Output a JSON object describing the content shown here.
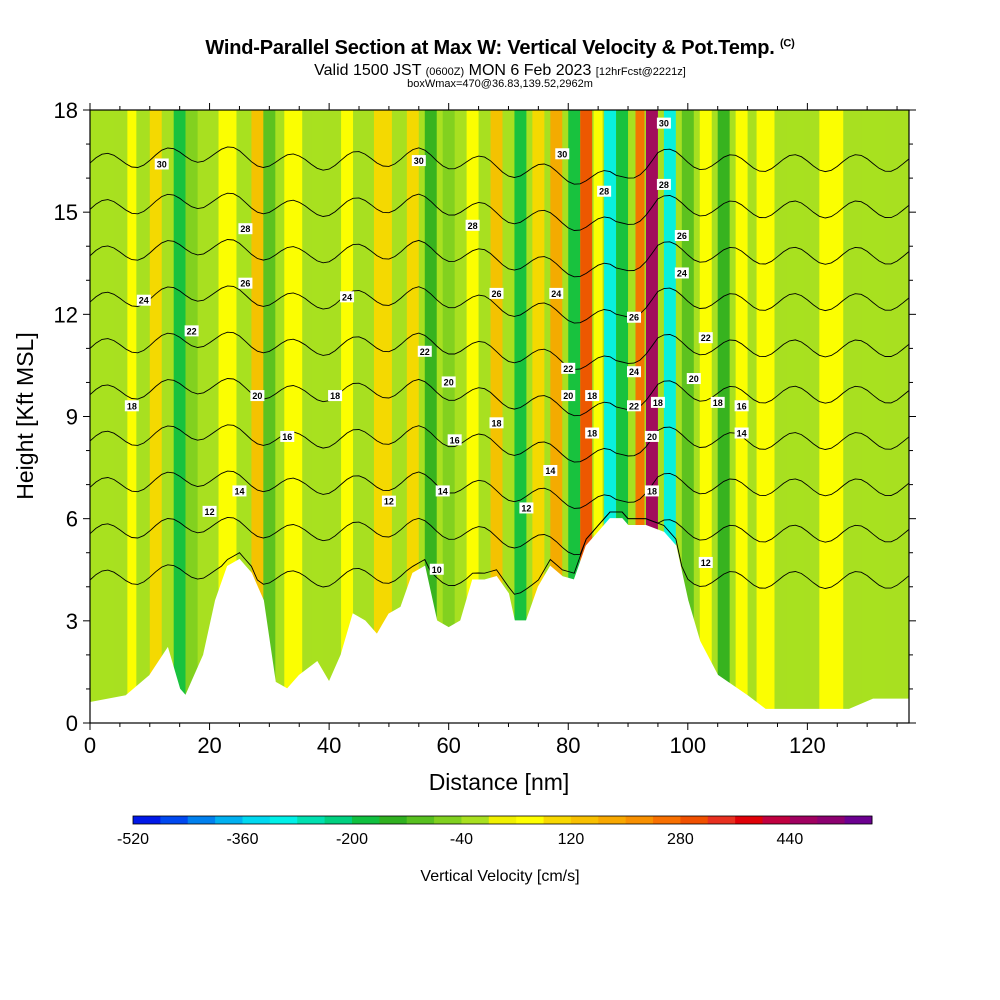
{
  "header": {
    "title": "Wind-Parallel Section at Max W: Vertical Velocity & Pot.Temp.",
    "title_mark": "(C)",
    "valid_prefix": "Valid 1500 JST ",
    "valid_utc": "(0600Z)",
    "valid_date": " MON 6 Feb 2023 ",
    "forecast_info": "[12hrFcst@2221z]",
    "box_info": "boxWmax=470@36.83,139.52,2962m"
  },
  "chart_data": {
    "type": "heatmap",
    "title": "Wind-Parallel Section at Max W: Vertical Velocity & Pot.Temp.",
    "xlabel": "Distance [nm]",
    "ylabel": "Height [Kft MSL]",
    "xlim": [
      0,
      137
    ],
    "ylim": [
      0,
      18
    ],
    "x_ticks": [
      0,
      20,
      40,
      60,
      80,
      100,
      120
    ],
    "y_ticks": [
      0,
      3,
      6,
      9,
      12,
      15,
      18
    ],
    "colorbar": {
      "label": "Vertical Velocity [cm/s]",
      "tick_values": [
        -520,
        -360,
        -200,
        -40,
        120,
        280,
        440
      ],
      "tick_labels": [
        "-520",
        "-360",
        "-200",
        "-40",
        "120",
        "280",
        "440"
      ],
      "min": -520,
      "step": 40,
      "colors": [
        "#0018e8",
        "#0048f0",
        "#0080ee",
        "#00b0f0",
        "#00d8f0",
        "#00f0e8",
        "#00e0b0",
        "#00d080",
        "#10c040",
        "#30b020",
        "#58c020",
        "#80d020",
        "#a8e020",
        "#f0f000",
        "#ffff00",
        "#f8d800",
        "#f8c000",
        "#f8a800",
        "#f89000",
        "#f87000",
        "#f05000",
        "#e83020",
        "#e00008",
        "#c00040",
        "#a00060",
        "#8c0070",
        "#6c0090"
      ]
    },
    "terrain_kft": [
      [
        0,
        0.6
      ],
      [
        6,
        0.8
      ],
      [
        10,
        1.4
      ],
      [
        13,
        2.2
      ],
      [
        15,
        1.0
      ],
      [
        16,
        0.8
      ],
      [
        17,
        1.2
      ],
      [
        19,
        2.0
      ],
      [
        21,
        3.6
      ],
      [
        23,
        4.6
      ],
      [
        25,
        4.8
      ],
      [
        27,
        4.4
      ],
      [
        29,
        3.6
      ],
      [
        31,
        1.2
      ],
      [
        33,
        1.0
      ],
      [
        35,
        1.4
      ],
      [
        38,
        1.8
      ],
      [
        40,
        1.2
      ],
      [
        42,
        2.0
      ],
      [
        44,
        3.2
      ],
      [
        46,
        3.0
      ],
      [
        48,
        2.6
      ],
      [
        50,
        3.2
      ],
      [
        52,
        3.4
      ],
      [
        54,
        4.4
      ],
      [
        56,
        4.6
      ],
      [
        58,
        3.0
      ],
      [
        60,
        2.8
      ],
      [
        62,
        3.0
      ],
      [
        64,
        4.2
      ],
      [
        66,
        4.2
      ],
      [
        68,
        4.3
      ],
      [
        70,
        3.8
      ],
      [
        71,
        3.0
      ],
      [
        73,
        3.0
      ],
      [
        75,
        4.0
      ],
      [
        77,
        4.6
      ],
      [
        79,
        4.3
      ],
      [
        81,
        4.2
      ],
      [
        83,
        5.2
      ],
      [
        85,
        5.6
      ],
      [
        87,
        6.0
      ],
      [
        89,
        6.0
      ],
      [
        90,
        5.8
      ],
      [
        93,
        5.8
      ],
      [
        96,
        5.6
      ],
      [
        98,
        5.2
      ],
      [
        100,
        3.6
      ],
      [
        102,
        2.4
      ],
      [
        105,
        1.4
      ],
      [
        110,
        0.8
      ],
      [
        113,
        0.4
      ],
      [
        127,
        0.4
      ],
      [
        131,
        0.7
      ],
      [
        137,
        0.7
      ]
    ],
    "series": [
      {
        "name": "theta",
        "theta_c": 12,
        "offsets_kft": [
          [
            0,
            0
          ],
          [
            20,
            0.3
          ],
          [
            35,
            0
          ],
          [
            55,
            0.2
          ],
          [
            72,
            -0.2
          ],
          [
            88,
            -0.5
          ],
          [
            95,
            0.2
          ],
          [
            105,
            0
          ],
          [
            137,
            0
          ]
        ]
      },
      {
        "name": "theta",
        "theta_c": 14,
        "offsets_kft": [
          [
            0,
            0
          ],
          [
            20,
            0.3
          ],
          [
            35,
            0
          ],
          [
            55,
            0.2
          ],
          [
            72,
            -0.2
          ],
          [
            88,
            -0.5
          ],
          [
            95,
            0.2
          ],
          [
            105,
            0
          ],
          [
            137,
            0
          ]
        ]
      },
      {
        "name": "theta",
        "theta_c": 16,
        "offsets_kft": [
          [
            0,
            0
          ],
          [
            20,
            0.3
          ],
          [
            35,
            0
          ],
          [
            55,
            0.2
          ],
          [
            72,
            -0.2
          ],
          [
            88,
            -0.5
          ],
          [
            95,
            0.2
          ],
          [
            105,
            0
          ],
          [
            137,
            0
          ]
        ]
      },
      {
        "name": "theta",
        "theta_c": 18,
        "offsets_kft": [
          [
            0,
            0
          ],
          [
            20,
            0.3
          ],
          [
            35,
            0
          ],
          [
            55,
            0.2
          ],
          [
            72,
            -0.2
          ],
          [
            88,
            -0.5
          ],
          [
            95,
            0.2
          ],
          [
            105,
            0
          ],
          [
            137,
            0
          ]
        ]
      },
      {
        "name": "theta",
        "theta_c": 20,
        "offsets_kft": [
          [
            0,
            0
          ],
          [
            20,
            0.3
          ],
          [
            35,
            0
          ],
          [
            55,
            0.2
          ],
          [
            72,
            -0.2
          ],
          [
            88,
            -0.5
          ],
          [
            95,
            0.2
          ],
          [
            105,
            0
          ],
          [
            137,
            0
          ]
        ]
      },
      {
        "name": "theta",
        "theta_c": 22,
        "offsets_kft": [
          [
            0,
            0
          ],
          [
            20,
            0.3
          ],
          [
            35,
            0
          ],
          [
            55,
            0.2
          ],
          [
            72,
            -0.2
          ],
          [
            88,
            -0.5
          ],
          [
            95,
            0.2
          ],
          [
            105,
            0
          ],
          [
            137,
            0
          ]
        ]
      },
      {
        "name": "theta",
        "theta_c": 24,
        "offsets_kft": [
          [
            0,
            0
          ],
          [
            20,
            0.3
          ],
          [
            35,
            0
          ],
          [
            55,
            0.2
          ],
          [
            72,
            -0.2
          ],
          [
            88,
            -0.5
          ],
          [
            95,
            0.2
          ],
          [
            105,
            0
          ],
          [
            137,
            0
          ]
        ]
      },
      {
        "name": "theta",
        "theta_c": 26,
        "offsets_kft": [
          [
            0,
            0
          ],
          [
            20,
            0.3
          ],
          [
            35,
            0
          ],
          [
            55,
            0.2
          ],
          [
            72,
            -0.2
          ],
          [
            88,
            -0.5
          ],
          [
            95,
            0.2
          ],
          [
            105,
            0
          ],
          [
            137,
            0
          ]
        ]
      },
      {
        "name": "theta",
        "theta_c": 28,
        "offsets_kft": [
          [
            0,
            0
          ],
          [
            20,
            0.3
          ],
          [
            35,
            0
          ],
          [
            55,
            0.2
          ],
          [
            72,
            -0.2
          ],
          [
            88,
            -0.5
          ],
          [
            95,
            0.2
          ],
          [
            105,
            0
          ],
          [
            137,
            0
          ]
        ]
      },
      {
        "name": "theta",
        "theta_c": 30,
        "offsets_kft": [
          [
            0,
            0
          ],
          [
            20,
            0.3
          ],
          [
            35,
            0
          ],
          [
            55,
            0.2
          ],
          [
            72,
            -0.2
          ],
          [
            88,
            -0.5
          ],
          [
            95,
            0.2
          ],
          [
            105,
            0
          ],
          [
            137,
            0
          ]
        ]
      }
    ],
    "w_columns_cms": [
      {
        "x_nm": 2,
        "w": -40,
        "width_nm": 4
      },
      {
        "x_nm": 7,
        "w": 40,
        "width_nm": 1.5
      },
      {
        "x_nm": 11,
        "w": 80,
        "width_nm": 2
      },
      {
        "x_nm": 15,
        "w": -200,
        "width_nm": 2
      },
      {
        "x_nm": 17,
        "w": -80,
        "width_nm": 2
      },
      {
        "x_nm": 23,
        "w": 60,
        "width_nm": 3
      },
      {
        "x_nm": 26,
        "w": -40,
        "width_nm": 2
      },
      {
        "x_nm": 28,
        "w": 140,
        "width_nm": 2
      },
      {
        "x_nm": 30,
        "w": -120,
        "width_nm": 2
      },
      {
        "x_nm": 34,
        "w": 60,
        "width_nm": 3
      },
      {
        "x_nm": 38,
        "w": -40,
        "width_nm": 2
      },
      {
        "x_nm": 43,
        "w": 60,
        "width_nm": 2
      },
      {
        "x_nm": 49,
        "w": 80,
        "width_nm": 3
      },
      {
        "x_nm": 54,
        "w": 100,
        "width_nm": 2
      },
      {
        "x_nm": 57,
        "w": -160,
        "width_nm": 2
      },
      {
        "x_nm": 60,
        "w": -80,
        "width_nm": 2
      },
      {
        "x_nm": 64,
        "w": 60,
        "width_nm": 2
      },
      {
        "x_nm": 68,
        "w": 120,
        "width_nm": 2
      },
      {
        "x_nm": 72,
        "w": -200,
        "width_nm": 2
      },
      {
        "x_nm": 75,
        "w": 80,
        "width_nm": 2
      },
      {
        "x_nm": 78,
        "w": 180,
        "width_nm": 2
      },
      {
        "x_nm": 81,
        "w": -200,
        "width_nm": 2
      },
      {
        "x_nm": 83,
        "w": 280,
        "width_nm": 2
      },
      {
        "x_nm": 85,
        "w": 40,
        "width_nm": 1.5
      },
      {
        "x_nm": 87,
        "w": -320,
        "width_nm": 2
      },
      {
        "x_nm": 89,
        "w": -200,
        "width_nm": 2
      },
      {
        "x_nm": 92,
        "w": 240,
        "width_nm": 1.5
      },
      {
        "x_nm": 94,
        "w": 470,
        "width_nm": 2
      },
      {
        "x_nm": 97,
        "w": -320,
        "width_nm": 2
      },
      {
        "x_nm": 100,
        "w": -120,
        "width_nm": 2
      },
      {
        "x_nm": 103,
        "w": 60,
        "width_nm": 2
      },
      {
        "x_nm": 106,
        "w": -160,
        "width_nm": 2
      },
      {
        "x_nm": 109,
        "w": 40,
        "width_nm": 2
      },
      {
        "x_nm": 113,
        "w": 60,
        "width_nm": 3
      },
      {
        "x_nm": 118,
        "w": -40,
        "width_nm": 3
      },
      {
        "x_nm": 124,
        "w": 40,
        "width_nm": 4
      },
      {
        "x_nm": 131,
        "w": -40,
        "width_nm": 4
      }
    ],
    "contour_labels": [
      {
        "text": "30",
        "x_nm": 12,
        "h_kft": 16.4
      },
      {
        "text": "30",
        "x_nm": 55,
        "h_kft": 16.5
      },
      {
        "text": "30",
        "x_nm": 79,
        "h_kft": 16.7
      },
      {
        "text": "30",
        "x_nm": 96,
        "h_kft": 17.6
      },
      {
        "text": "28",
        "x_nm": 26,
        "h_kft": 14.5
      },
      {
        "text": "28",
        "x_nm": 64,
        "h_kft": 14.6
      },
      {
        "text": "28",
        "x_nm": 86,
        "h_kft": 15.6
      },
      {
        "text": "28",
        "x_nm": 96,
        "h_kft": 15.8
      },
      {
        "text": "26",
        "x_nm": 26,
        "h_kft": 12.9
      },
      {
        "text": "26",
        "x_nm": 68,
        "h_kft": 12.6
      },
      {
        "text": "26",
        "x_nm": 99,
        "h_kft": 14.3
      },
      {
        "text": "24",
        "x_nm": 9,
        "h_kft": 12.4
      },
      {
        "text": "24",
        "x_nm": 43,
        "h_kft": 12.5
      },
      {
        "text": "24",
        "x_nm": 78,
        "h_kft": 12.6
      },
      {
        "text": "24",
        "x_nm": 99,
        "h_kft": 13.2
      },
      {
        "text": "22",
        "x_nm": 17,
        "h_kft": 11.5
      },
      {
        "text": "22",
        "x_nm": 56,
        "h_kft": 10.9
      },
      {
        "text": "22",
        "x_nm": 80,
        "h_kft": 10.4
      },
      {
        "text": "22",
        "x_nm": 103,
        "h_kft": 11.3
      },
      {
        "text": "20",
        "x_nm": 28,
        "h_kft": 9.6
      },
      {
        "text": "20",
        "x_nm": 60,
        "h_kft": 10.0
      },
      {
        "text": "20",
        "x_nm": 80,
        "h_kft": 9.6
      },
      {
        "text": "20",
        "x_nm": 101,
        "h_kft": 10.1
      },
      {
        "text": "18",
        "x_nm": 41,
        "h_kft": 9.6
      },
      {
        "text": "18",
        "x_nm": 68,
        "h_kft": 8.8
      },
      {
        "text": "18",
        "x_nm": 84,
        "h_kft": 9.6
      },
      {
        "text": "18",
        "x_nm": 7,
        "h_kft": 9.3
      },
      {
        "text": "18",
        "x_nm": 95,
        "h_kft": 9.4
      },
      {
        "text": "18",
        "x_nm": 84,
        "h_kft": 8.5
      },
      {
        "text": "18",
        "x_nm": 94,
        "h_kft": 6.8
      },
      {
        "text": "18",
        "x_nm": 105,
        "h_kft": 9.4
      },
      {
        "text": "16",
        "x_nm": 33,
        "h_kft": 8.4
      },
      {
        "text": "16",
        "x_nm": 61,
        "h_kft": 8.3
      },
      {
        "text": "16",
        "x_nm": 109,
        "h_kft": 9.3
      },
      {
        "text": "14",
        "x_nm": 25,
        "h_kft": 6.8
      },
      {
        "text": "14",
        "x_nm": 59,
        "h_kft": 6.8
      },
      {
        "text": "14",
        "x_nm": 77,
        "h_kft": 7.4
      },
      {
        "text": "14",
        "x_nm": 109,
        "h_kft": 8.5
      },
      {
        "text": "12",
        "x_nm": 20,
        "h_kft": 6.2
      },
      {
        "text": "12",
        "x_nm": 50,
        "h_kft": 6.5
      },
      {
        "text": "12",
        "x_nm": 73,
        "h_kft": 6.3
      },
      {
        "text": "12",
        "x_nm": 103,
        "h_kft": 4.7
      },
      {
        "text": "22",
        "x_nm": 91,
        "h_kft": 9.3
      },
      {
        "text": "24",
        "x_nm": 91,
        "h_kft": 10.3
      },
      {
        "text": "26",
        "x_nm": 91,
        "h_kft": 11.9
      },
      {
        "text": "10",
        "x_nm": 58,
        "h_kft": 4.5
      },
      {
        "text": "20",
        "x_nm": 94,
        "h_kft": 8.4
      }
    ]
  }
}
